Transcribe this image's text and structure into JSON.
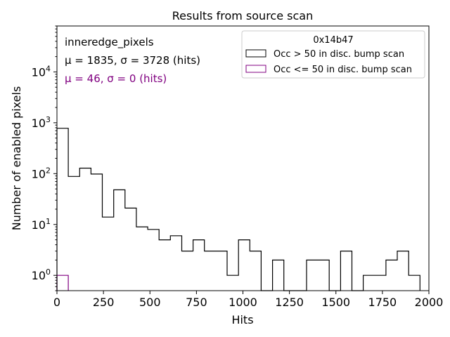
{
  "chart_data": {
    "type": "histogram",
    "title": "Results from source scan",
    "xlabel": "Hits",
    "ylabel": "Number of enabled pixels",
    "xlim": [
      0,
      2000
    ],
    "ylim": [
      0.5,
      80000
    ],
    "yscale": "log",
    "xticks": [
      0,
      250,
      500,
      750,
      1000,
      1250,
      1500,
      1750,
      2000
    ],
    "xtick_labels": [
      "0",
      "250",
      "500",
      "750",
      "1000",
      "1250",
      "1500",
      "1750",
      "2000"
    ],
    "yticks": [
      1,
      10,
      100,
      1000,
      10000
    ],
    "ytick_bases": [
      "10",
      "10",
      "10",
      "10",
      "10"
    ],
    "ytick_exps": [
      "0",
      "1",
      "2",
      "3",
      "4"
    ],
    "bin_width": 61,
    "legend": {
      "title": "0x14b47",
      "placement": "top-right"
    },
    "annotations": {
      "line1": "inneredge_pixels",
      "line2": "μ = 1835, σ = 3728 (hits)",
      "line3": "μ = 46, σ = 0 (hits)"
    },
    "series": [
      {
        "name": "Occ > 50 in disc. bump scan",
        "color": "#000000",
        "bin_starts": [
          0,
          61,
          122,
          183,
          244,
          305,
          366,
          427,
          488,
          549,
          610,
          671,
          732,
          793,
          854,
          915,
          976,
          1037,
          1098,
          1159,
          1220,
          1281,
          1342,
          1403,
          1464,
          1525,
          1586,
          1647,
          1708,
          1769,
          1830,
          1891
        ],
        "values": [
          780,
          88,
          128,
          98,
          14,
          48,
          21,
          9,
          8,
          5,
          6,
          3,
          5,
          3,
          3,
          1,
          5,
          3,
          0,
          2,
          0,
          0,
          2,
          2,
          0,
          3,
          0,
          1,
          1,
          2,
          3,
          1
        ]
      },
      {
        "name": "Occ <= 50 in disc. bump scan",
        "color": "#800080",
        "bin_starts": [
          0
        ],
        "values": [
          1
        ]
      }
    ]
  }
}
